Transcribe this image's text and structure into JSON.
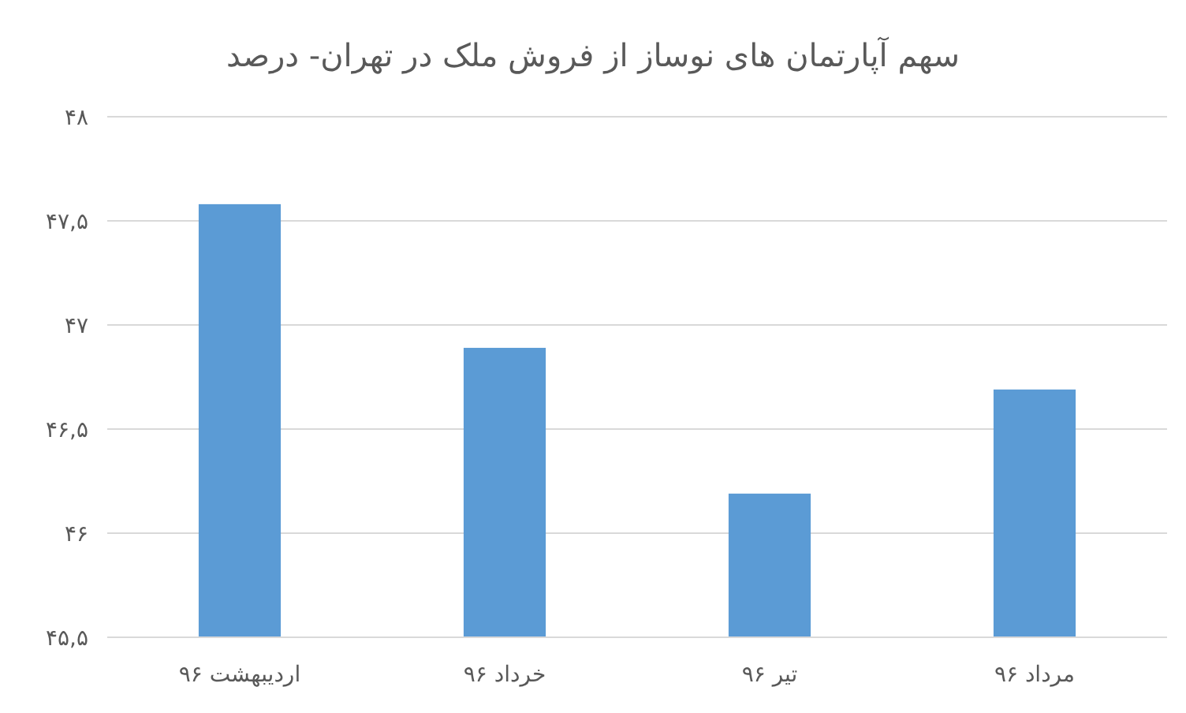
{
  "chart_data": {
    "type": "bar",
    "title": "سهم آپارتمان های نوساز از فروش ملک در تهران- درصد",
    "categories": [
      "اردیبهشت ۹۶",
      "خرداد ۹۶",
      "تیر ۹۶",
      "مرداد ۹۶"
    ],
    "values": [
      47.58,
      46.89,
      46.19,
      46.69
    ],
    "color": "#5b9bd5",
    "ylim": [
      45.5,
      48
    ],
    "yticks": [
      {
        "value": 45.5,
        "label": "۴۵,۵"
      },
      {
        "value": 46,
        "label": "۴۶"
      },
      {
        "value": 46.5,
        "label": "۴۶,۵"
      },
      {
        "value": 47,
        "label": "۴۷"
      },
      {
        "value": 47.5,
        "label": "۴۷,۵"
      },
      {
        "value": 48,
        "label": "۴۸"
      }
    ],
    "grid": "y"
  }
}
